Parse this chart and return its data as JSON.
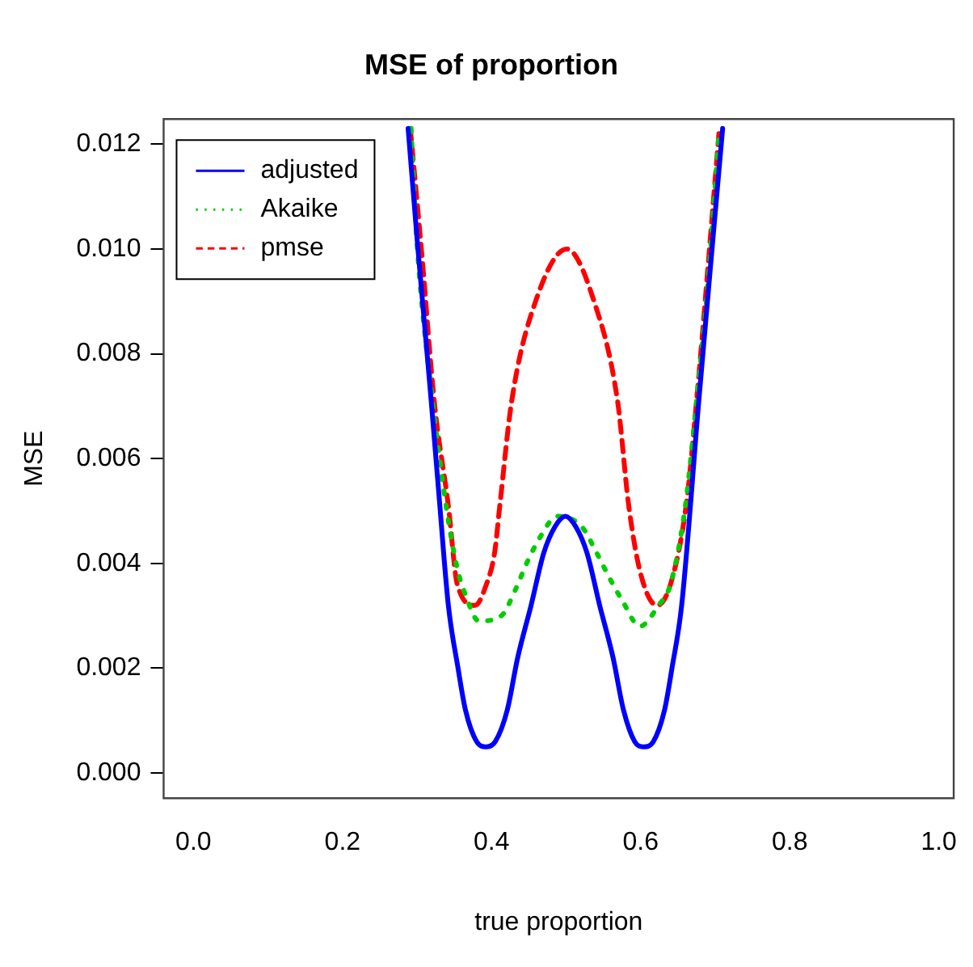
{
  "chart_data": {
    "type": "line",
    "title": "MSE of proportion",
    "xlabel": "true proportion",
    "ylabel": "MSE",
    "xlim": [
      -0.04,
      1.02
    ],
    "xticks": [
      {
        "value": 0,
        "label": "0.0"
      },
      0.2,
      0.4,
      0.6,
      0.8,
      {
        "value": 1,
        "label": "1.0"
      }
    ],
    "ylim": [
      -0.00048,
      0.01248
    ],
    "yticks": [
      {
        "value": 0,
        "label": "0.000"
      },
      {
        "value": 0.002,
        "label": "0.002"
      },
      {
        "value": 0.004,
        "label": "0.004"
      },
      {
        "value": 0.006,
        "label": "0.006"
      },
      {
        "value": 0.008,
        "label": "0.008"
      },
      {
        "value": 0.01,
        "label": "0.010"
      },
      {
        "value": 0.012,
        "label": "0.012"
      }
    ],
    "grid": false,
    "legend": "top left",
    "marker": "none",
    "series": [
      {
        "name": "adjusted",
        "color": "#0000ff",
        "line_style": "solid",
        "x": [
          0.288,
          0.3,
          0.319,
          0.33,
          0.342,
          0.355,
          0.365,
          0.38,
          0.393,
          0.405,
          0.421,
          0.435,
          0.453,
          0.47,
          0.485,
          0.499,
          0.513,
          0.528,
          0.545,
          0.563,
          0.577,
          0.592,
          0.604,
          0.617,
          0.632,
          0.642,
          0.655,
          0.678,
          0.697,
          0.71
        ],
        "values": [
          0.0123,
          0.0102,
          0.0071,
          0.0052,
          0.0032,
          0.002,
          0.0012,
          0.0006,
          0.0005,
          0.0006,
          0.0012,
          0.0022,
          0.0032,
          0.0042,
          0.0047,
          0.0049,
          0.0047,
          0.0042,
          0.0032,
          0.0022,
          0.0012,
          0.0006,
          0.0005,
          0.0006,
          0.0012,
          0.002,
          0.0032,
          0.0071,
          0.0102,
          0.0123
        ]
      },
      {
        "name": "Akaike",
        "color": "#00cd00",
        "line_style": "dotted",
        "x": [
          0.292,
          0.3,
          0.32,
          0.34,
          0.354,
          0.365,
          0.383,
          0.413,
          0.432,
          0.447,
          0.465,
          0.488,
          0.521,
          0.541,
          0.559,
          0.575,
          0.599,
          0.624,
          0.64,
          0.66,
          0.675,
          0.69,
          0.705
        ],
        "values": [
          0.0123,
          0.0101,
          0.0072,
          0.005,
          0.0039,
          0.0034,
          0.0029,
          0.003,
          0.0035,
          0.004,
          0.0045,
          0.0049,
          0.0047,
          0.0042,
          0.0037,
          0.0033,
          0.0028,
          0.0032,
          0.0036,
          0.0051,
          0.0071,
          0.0093,
          0.0122
        ]
      },
      {
        "name": "pmse",
        "color": "#ff0000",
        "line_style": "dashed",
        "x": [
          0.291,
          0.307,
          0.323,
          0.342,
          0.354,
          0.378,
          0.393,
          0.404,
          0.411,
          0.427,
          0.459,
          0.501,
          0.5375,
          0.569,
          0.584,
          0.6,
          0.622,
          0.64,
          0.661,
          0.675,
          0.705
        ],
        "values": [
          0.0123,
          0.0098,
          0.0071,
          0.0051,
          0.0036,
          0.0032,
          0.0036,
          0.0042,
          0.0051,
          0.0071,
          0.009,
          0.01,
          0.009,
          0.0071,
          0.0051,
          0.0038,
          0.0032,
          0.0036,
          0.0051,
          0.0071,
          0.0122
        ]
      }
    ]
  }
}
